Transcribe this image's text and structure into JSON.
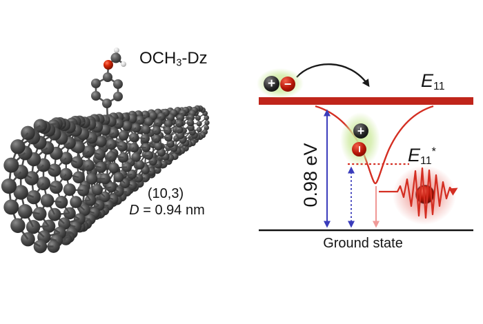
{
  "colors": {
    "bar_red": "#c0251b",
    "curve_red": "#d42e22",
    "arrow_blue": "#3a3cbb",
    "arrow_pink": "#f09a98",
    "glow_green": "#cdea9e",
    "emission_red": "#e0544a",
    "text_black": "#141414"
  },
  "left_panel": {
    "molecule_label": {
      "pre": "OCH",
      "sub": "3",
      "post": "-Dz"
    },
    "chirality_label": "(10,3)",
    "diameter_label": {
      "symbol": "D",
      "rest": " = 0.94 nm"
    }
  },
  "right_panel": {
    "e11_label": {
      "main": "E",
      "sub": "11"
    },
    "e11_star_label": {
      "main": "E",
      "sub": "11",
      "sup": "*"
    },
    "energy_gap_label": "0.98 eV",
    "ground_state_label": "Ground state",
    "charges": {
      "plus": "+",
      "minus": "−"
    }
  }
}
